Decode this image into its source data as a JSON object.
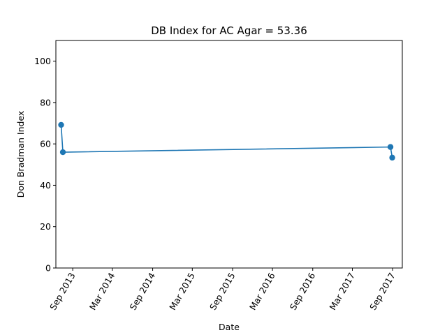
{
  "chart_data": {
    "type": "line",
    "title": "DB Index for AC Agar = 53.36",
    "xlabel": "Date",
    "ylabel": "Don Bradman Index",
    "ylim": [
      0,
      110
    ],
    "xlim": [
      "2013-06-16",
      "2017-10-15"
    ],
    "yticks": [
      0,
      20,
      40,
      60,
      80,
      100
    ],
    "xticks": [
      {
        "date": "2013-09-01",
        "label": "Sep 2013"
      },
      {
        "date": "2014-03-01",
        "label": "Mar 2014"
      },
      {
        "date": "2014-09-01",
        "label": "Sep 2014"
      },
      {
        "date": "2015-03-01",
        "label": "Mar 2015"
      },
      {
        "date": "2015-09-01",
        "label": "Sep 2015"
      },
      {
        "date": "2016-03-01",
        "label": "Mar 2016"
      },
      {
        "date": "2016-09-01",
        "label": "Sep 2016"
      },
      {
        "date": "2017-03-01",
        "label": "Mar 2017"
      },
      {
        "date": "2017-09-01",
        "label": "Sep 2017"
      }
    ],
    "series": [
      {
        "color": "#1f77b4",
        "points": [
          {
            "x": "2013-07-10",
            "y": 69.2
          },
          {
            "x": "2013-07-18",
            "y": 56.0
          },
          {
            "x": "2017-08-22",
            "y": 58.5
          },
          {
            "x": "2017-08-30",
            "y": 53.36
          }
        ]
      }
    ],
    "grid": false,
    "legend": "none"
  }
}
